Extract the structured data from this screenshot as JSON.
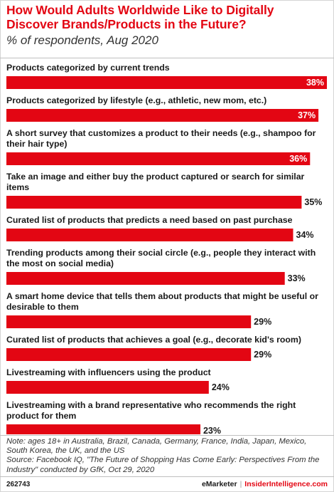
{
  "title": "How Would Adults Worldwide Like to Digitally Discover Brands/Products in the Future?",
  "subtitle": "% of respondents, Aug 2020",
  "colors": {
    "accent": "#e30613",
    "bar": "#e30613"
  },
  "chart_data": {
    "type": "bar",
    "orientation": "horizontal",
    "unit": "%",
    "categories": [
      [
        "Products categorized by current trends"
      ],
      [
        "Products categorized by lifestyle (e.g., athletic, new mom, etc.)"
      ],
      [
        "A short survey that customizes a product to their needs (e.g., shampoo for",
        "their hair type)"
      ],
      [
        "Take an image and either buy the product captured or search for similar",
        "items"
      ],
      [
        "Curated list of products that predicts a need based on past purchase"
      ],
      [
        "Trending products among their social circle (e.g., people they interact with",
        "the most on social media)"
      ],
      [
        "A smart home device that tells them about products that might be useful or",
        "desirable to them"
      ],
      [
        "Curated list of products that achieves a goal (e.g., decorate kid's room)"
      ],
      [
        "Livestreaming with influencers using the product"
      ],
      [
        "Livestreaming with a brand representative who recommends the right",
        "product for them"
      ]
    ],
    "values": [
      38,
      37,
      36,
      35,
      34,
      33,
      29,
      29,
      24,
      23
    ],
    "value_labels": [
      "38%",
      "37%",
      "36%",
      "35%",
      "34%",
      "33%",
      "29%",
      "29%",
      "24%",
      "23%"
    ],
    "xlim": [
      0,
      38
    ],
    "grid": false,
    "legend": "none"
  },
  "note": "Note: ages 18+ in Australia, Brazil, Canada, Germany, France, India, Japan, Mexico, South Korea, the UK, and the US",
  "source": "Source: Facebook IQ, \"The Future of Shopping Has Come Early: Perspectives From the Industry\" conducted by GfK, Oct 29, 2020",
  "footer": {
    "chart_id": "262743",
    "brand_left": "eMarketer",
    "separator": "|",
    "brand_right": "InsiderIntelligence.com"
  }
}
